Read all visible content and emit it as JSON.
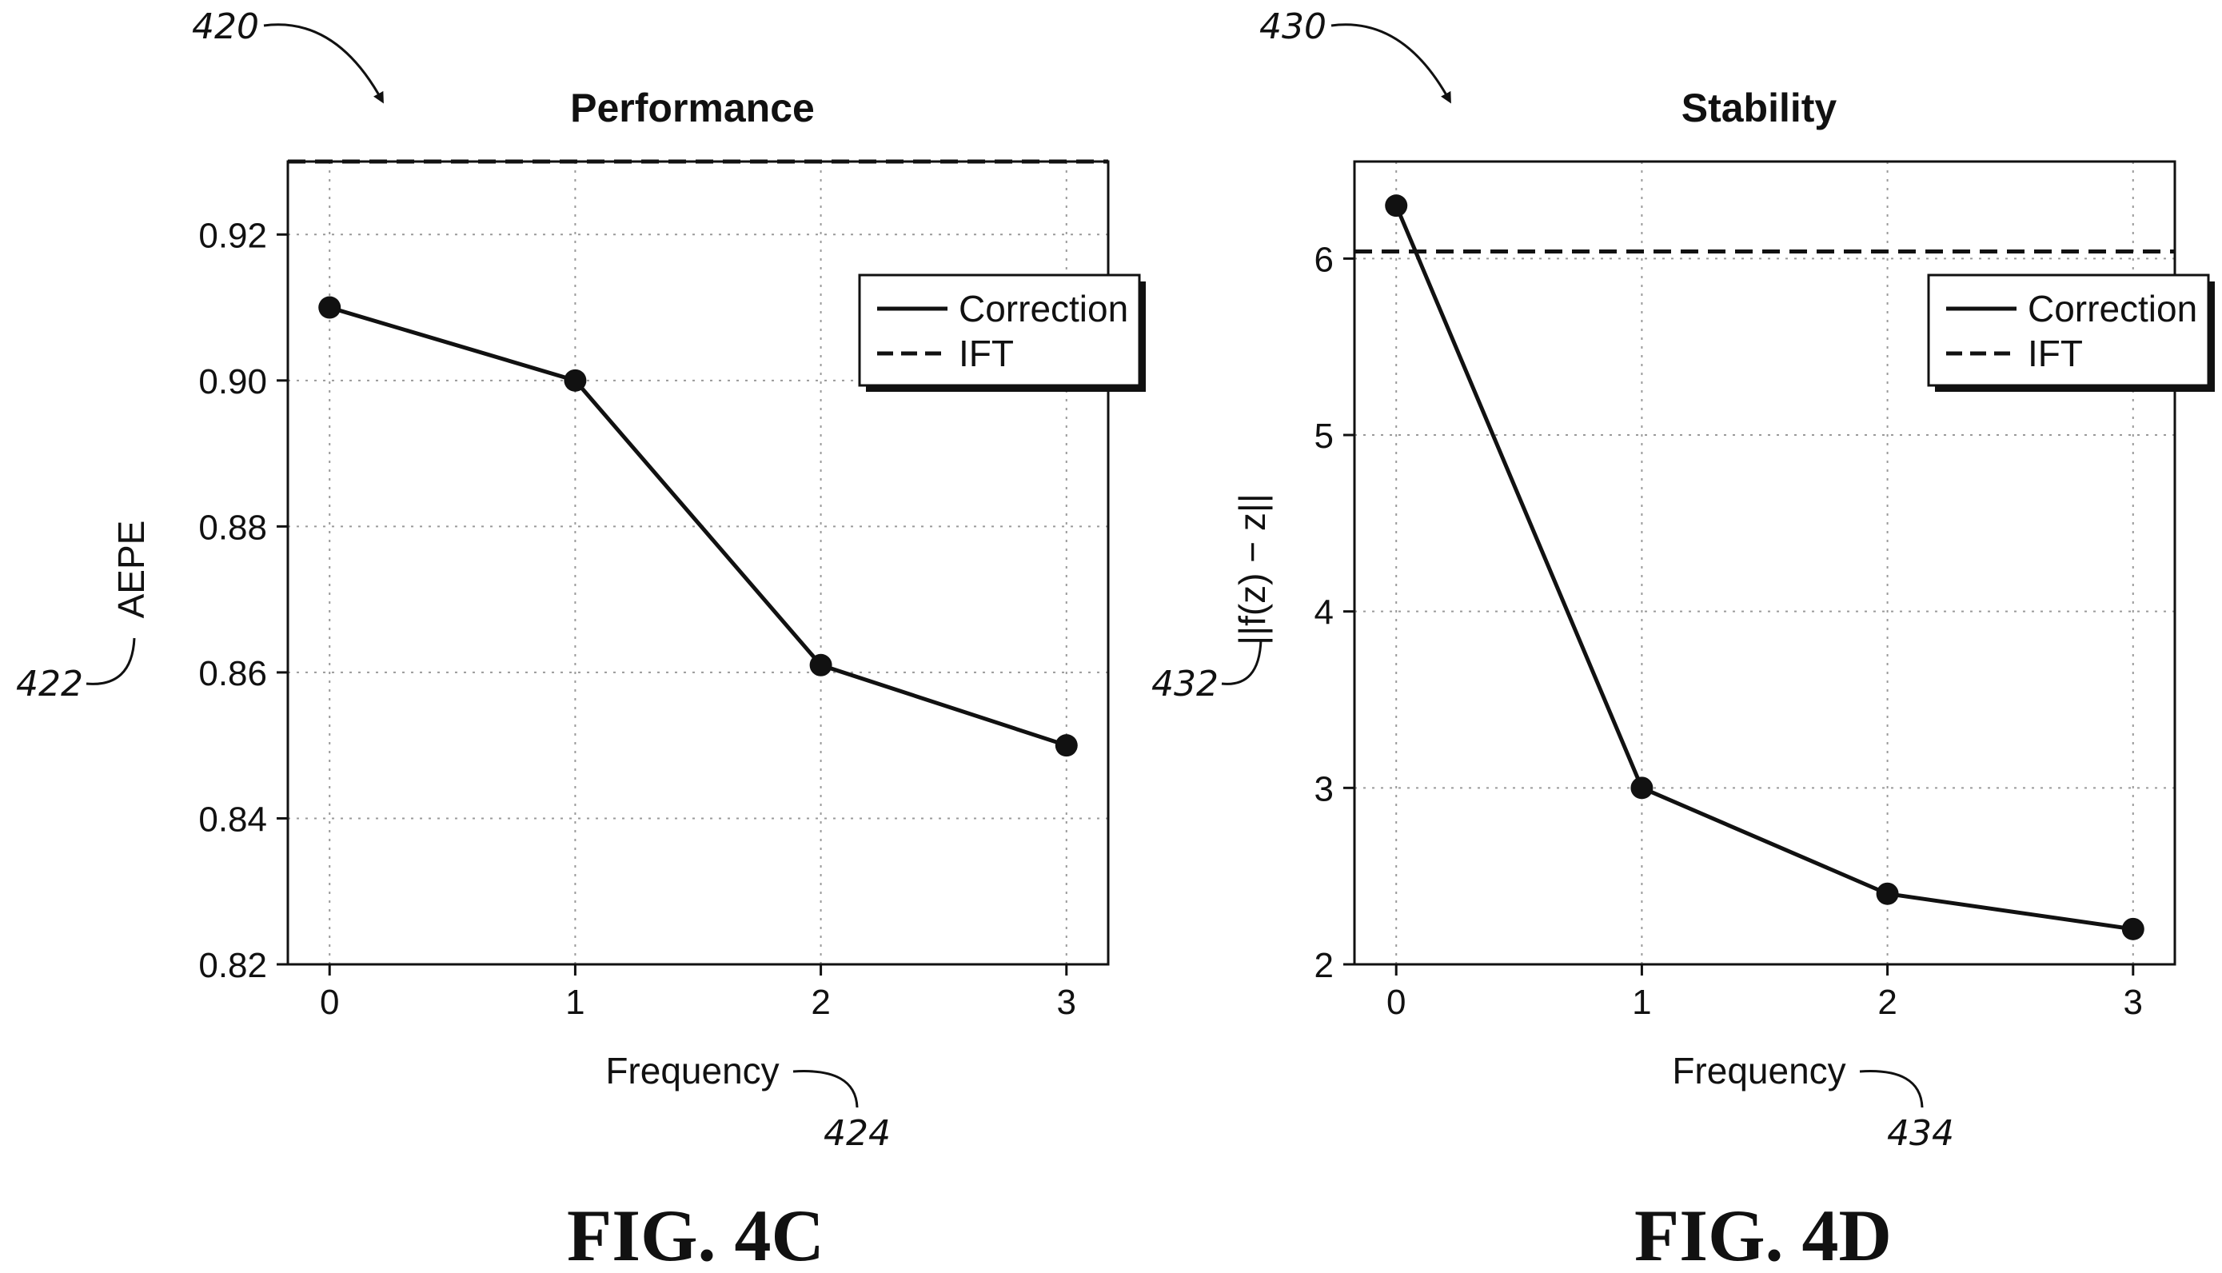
{
  "figures": [
    {
      "ref_number": "420",
      "title_ref": "Performance",
      "fig_label": "FIG. 4C",
      "ylabel_ref": "422",
      "xlabel_ref": "424"
    },
    {
      "ref_number": "430",
      "title_ref": "Stability",
      "fig_label": "FIG. 4D",
      "ylabel_ref": "432",
      "xlabel_ref": "434"
    }
  ],
  "chart_data": [
    {
      "type": "line",
      "title": "Performance",
      "xlabel": "Frequency",
      "ylabel": "AEPE",
      "x": [
        0,
        1,
        2,
        3
      ],
      "xticks": [
        "0",
        "1",
        "2",
        "3"
      ],
      "xlim": [
        -0.17,
        3.17
      ],
      "ylim": [
        0.82,
        0.93
      ],
      "yticks": [
        "0.82",
        "0.84",
        "0.86",
        "0.88",
        "0.90",
        "0.92"
      ],
      "yticks_values": [
        0.82,
        0.84,
        0.86,
        0.88,
        0.9,
        0.92
      ],
      "grid": true,
      "legend_position": "top-right",
      "series": [
        {
          "name": "Correction",
          "style": "solid",
          "markers": true,
          "values": [
            0.91,
            0.9,
            0.861,
            0.85
          ]
        },
        {
          "name": "IFT",
          "style": "dashed",
          "markers": false,
          "constant": 0.93
        }
      ]
    },
    {
      "type": "line",
      "title": "Stability",
      "xlabel": "Frequency",
      "ylabel": "||f(z) − z||",
      "x": [
        0,
        1,
        2,
        3
      ],
      "xticks": [
        "0",
        "1",
        "2",
        "3"
      ],
      "xlim": [
        -0.17,
        3.17
      ],
      "ylim": [
        2,
        6.55
      ],
      "yticks": [
        "2",
        "3",
        "4",
        "5",
        "6"
      ],
      "yticks_values": [
        2,
        3,
        4,
        5,
        6
      ],
      "grid": true,
      "legend_position": "top-right",
      "series": [
        {
          "name": "Correction",
          "style": "solid",
          "markers": true,
          "values": [
            6.3,
            3.0,
            2.4,
            2.2
          ]
        },
        {
          "name": "IFT",
          "style": "dashed",
          "markers": false,
          "constant": 6.04
        }
      ]
    }
  ]
}
